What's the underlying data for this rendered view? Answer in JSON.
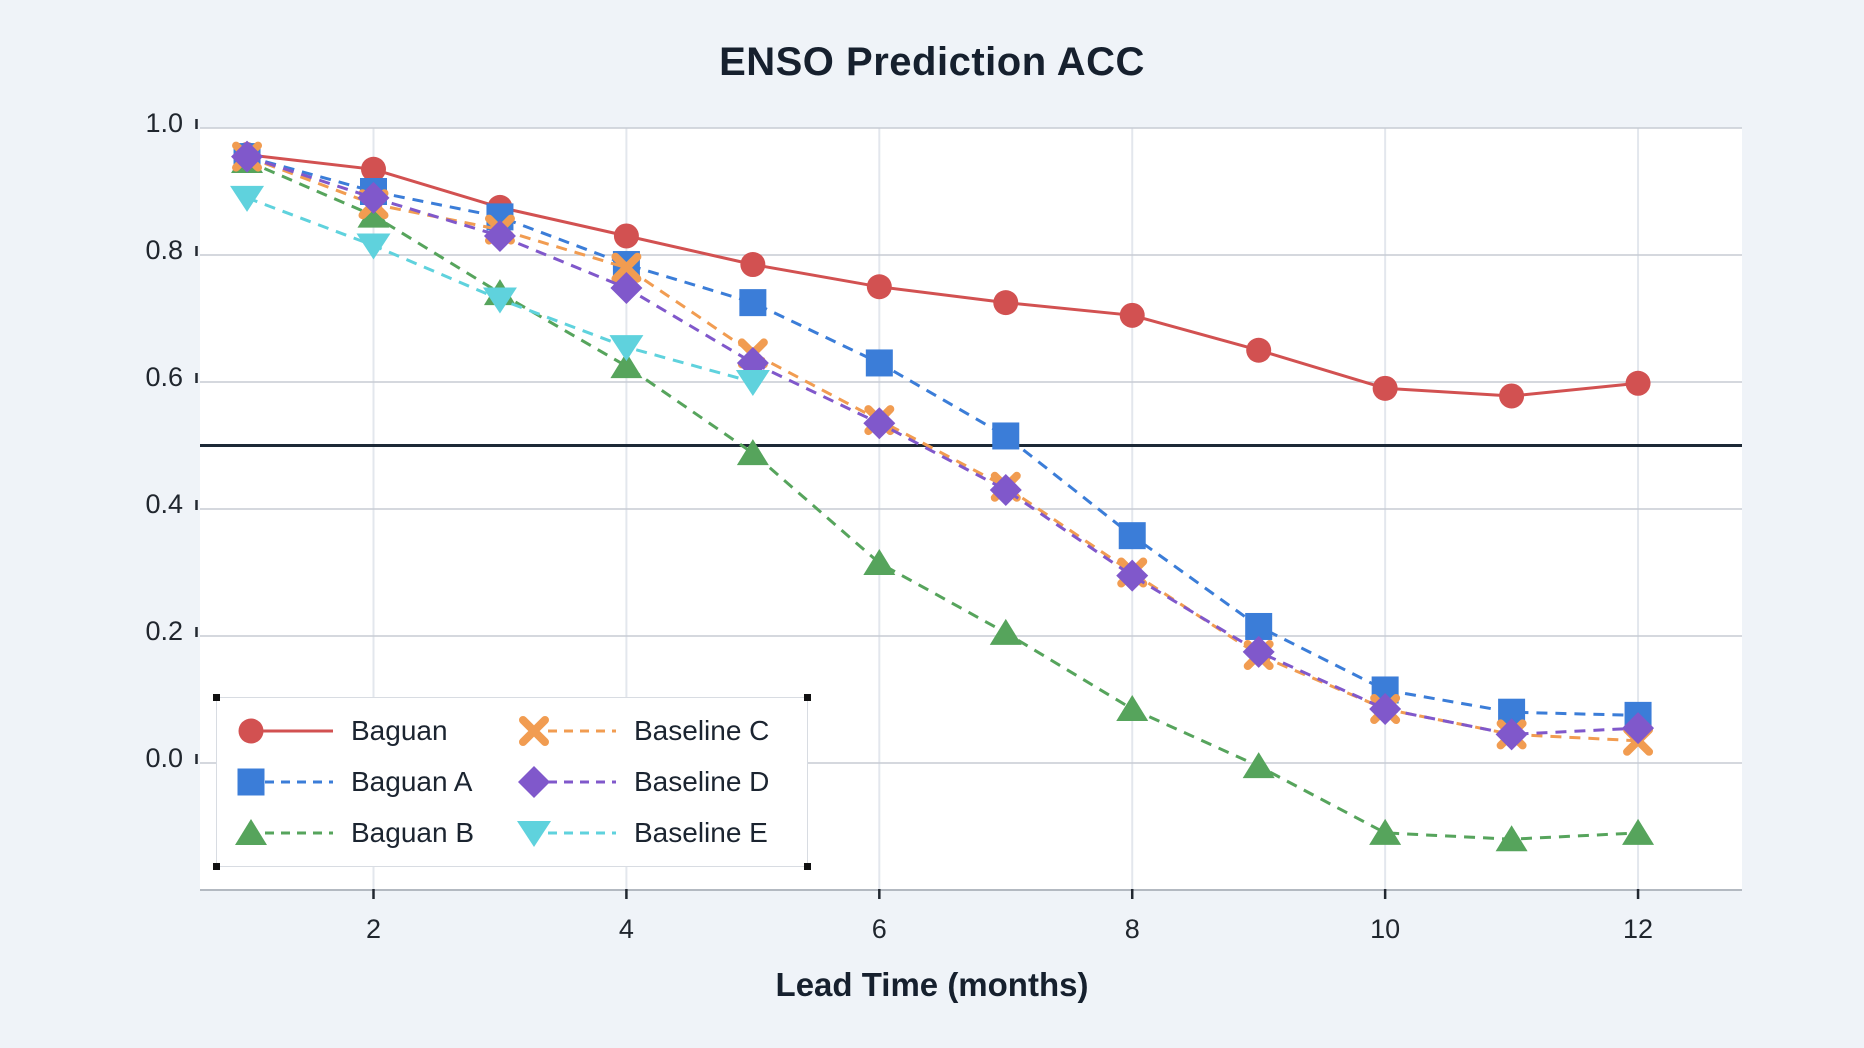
{
  "page": {
    "background": "#eff3f8"
  },
  "chart_data": {
    "type": "line",
    "title": "ENSO Prediction ACC",
    "xlabel": "Lead Time (months)",
    "ylabel": "",
    "x": [
      1,
      2,
      3,
      4,
      5,
      6,
      7,
      8,
      9,
      10,
      11,
      12
    ],
    "xticks": [
      2,
      4,
      6,
      8,
      10,
      12
    ],
    "xtick_labels": [
      "2",
      "4",
      "6",
      "8",
      "10",
      "12"
    ],
    "yticks": [
      0.0,
      0.2,
      0.4,
      0.6,
      0.8,
      1.0
    ],
    "ytick_labels": [
      "0.0",
      "0.2",
      "0.4",
      "0.6",
      "0.8",
      "1.0"
    ],
    "xlim": [
      0.628,
      12.822
    ],
    "ylim": [
      -0.2,
      1.0
    ],
    "grid": true,
    "reference_line_y": 0.5,
    "reference_line_color": "#1d2936",
    "legend_position": "lower-left",
    "series": [
      {
        "name": "Baguan",
        "marker": "circle",
        "line_style": "solid",
        "color": "#d25151",
        "values": [
          0.958,
          0.935,
          0.875,
          0.83,
          0.785,
          0.75,
          0.725,
          0.705,
          0.65,
          0.59,
          0.578,
          0.598
        ]
      },
      {
        "name": "Baguan A",
        "marker": "square",
        "line_style": "dashed",
        "color": "#3b7dd8",
        "values": [
          0.955,
          0.9,
          0.86,
          0.785,
          0.725,
          0.63,
          0.515,
          0.358,
          0.215,
          0.115,
          0.08,
          0.075
        ]
      },
      {
        "name": "Baguan B",
        "marker": "triangle-up",
        "line_style": "dashed",
        "color": "#56a45c",
        "values": [
          0.948,
          0.862,
          0.74,
          0.625,
          0.488,
          0.315,
          0.205,
          0.085,
          -0.005,
          -0.11,
          -0.12,
          -0.11
        ]
      },
      {
        "name": "Baseline C",
        "marker": "x",
        "line_style": "dashed",
        "color": "#f19c51",
        "values": [
          0.955,
          0.88,
          0.84,
          0.78,
          0.645,
          0.54,
          0.435,
          0.3,
          0.17,
          0.085,
          0.045,
          0.035
        ]
      },
      {
        "name": "Baseline D",
        "marker": "diamond",
        "line_style": "dashed",
        "color": "#8058cb",
        "values": [
          0.955,
          0.89,
          0.83,
          0.748,
          0.63,
          0.535,
          0.43,
          0.295,
          0.175,
          0.085,
          0.045,
          0.055
        ]
      },
      {
        "name": "Baseline E",
        "marker": "triangle-down",
        "line_style": "dashed",
        "color": "#5fd2dd",
        "values": [
          0.89,
          0.815,
          0.73,
          0.655,
          0.6,
          null,
          null,
          null,
          null,
          null,
          null,
          null
        ]
      }
    ]
  }
}
